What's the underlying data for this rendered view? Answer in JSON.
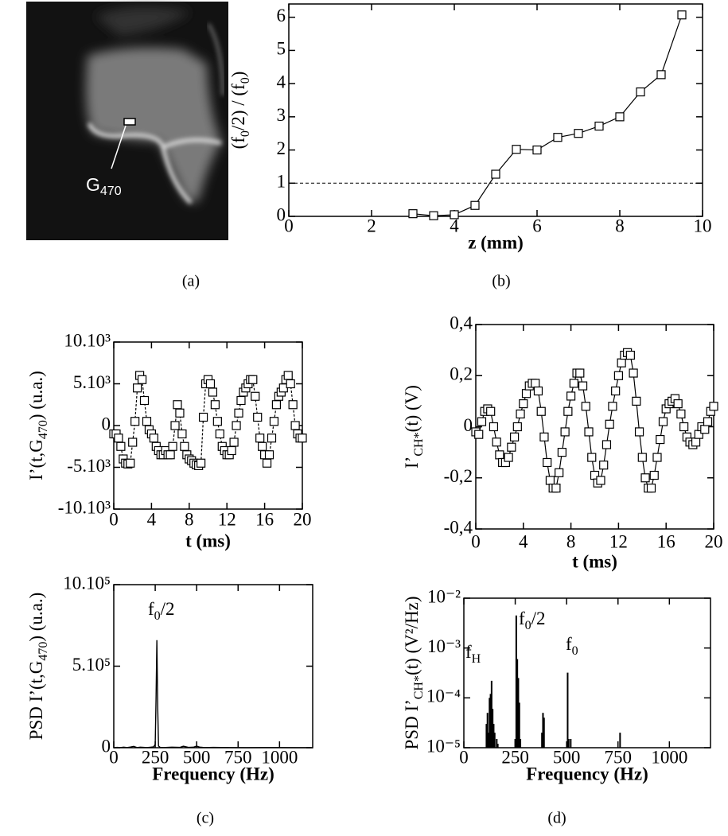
{
  "photo": {
    "label": [
      "G",
      "470"
    ],
    "scale": "1mm"
  },
  "captions": [
    "(a)",
    "(b)",
    "(c)",
    "(d)"
  ],
  "chart_data": [
    {
      "type": "line",
      "xlabel": "z (mm)",
      "ylabel": [
        "(f",
        "0",
        "/2) / (f",
        "0",
        ")"
      ],
      "xlim": [
        0,
        10
      ],
      "xticks": [
        0,
        2,
        4,
        6,
        8,
        10
      ],
      "ylim": [
        0,
        6.4
      ],
      "yticks": [
        0,
        1,
        2,
        3,
        4,
        5,
        6
      ],
      "hline": 1,
      "color": "#000000",
      "marker": "square",
      "series": [
        {
          "x": [
            3,
            3.5,
            4,
            4.5,
            5,
            5.5,
            6,
            6.5,
            7,
            7.5,
            8,
            8.5,
            9,
            9.5
          ],
          "values": [
            0.08,
            0.02,
            0.05,
            0.33,
            1.27,
            2.02,
            2.0,
            2.38,
            2.5,
            2.72,
            3.0,
            3.75,
            4.27,
            6.07
          ]
        }
      ]
    },
    {
      "type": "line",
      "xlabel": "t (ms)",
      "ylabel": [
        "I’(t,G",
        "470",
        ") (u.a.)"
      ],
      "xlim": [
        0,
        20
      ],
      "xticks": [
        0,
        4,
        8,
        12,
        16,
        20
      ],
      "ylim": [
        -10000,
        10000
      ],
      "yticks": [
        {
          "value": -10000,
          "label": "-10.10³"
        },
        {
          "value": -5000,
          "label": "-5.10³"
        },
        0,
        {
          "value": 5000,
          "label": "5.10³"
        },
        {
          "value": 10000,
          "label": "10.10³"
        }
      ],
      "color": "#000000",
      "marker": "square",
      "dashed": true,
      "series": [
        {
          "x": [
            0,
            0.25,
            0.5,
            0.75,
            1,
            1.25,
            1.5,
            1.75,
            2,
            2.25,
            2.5,
            2.75,
            3,
            3.25,
            3.5,
            3.75,
            4,
            4.25,
            4.5,
            4.75,
            5,
            5.25,
            5.5,
            5.75,
            6,
            6.25,
            6.5,
            6.75,
            7,
            7.25,
            7.5,
            7.75,
            8,
            8.25,
            8.5,
            8.75,
            9,
            9.25,
            9.5,
            9.75,
            10,
            10.25,
            10.5,
            10.75,
            11,
            11.25,
            11.5,
            11.75,
            12,
            12.25,
            12.5,
            12.75,
            13,
            13.25,
            13.5,
            13.75,
            14,
            14.25,
            14.5,
            14.75,
            15,
            15.25,
            15.5,
            15.75,
            16,
            16.25,
            16.5,
            16.75,
            17,
            17.25,
            17.5,
            17.75,
            18,
            18.25,
            18.5,
            18.75,
            19,
            19.25,
            19.5,
            19.75,
            20
          ],
          "values": [
            -1000,
            -1000,
            -1500,
            -2500,
            -4000,
            -4500,
            -4600,
            -4500,
            -2000,
            500,
            4500,
            6000,
            5500,
            3000,
            500,
            -500,
            -1000,
            -1500,
            -2500,
            -3000,
            -3500,
            -3500,
            -3000,
            -3500,
            -3500,
            -2500,
            0,
            2500,
            1500,
            -1000,
            -2500,
            -3500,
            -4000,
            -4200,
            -4500,
            -4700,
            -4800,
            -4500,
            1000,
            5000,
            5500,
            5000,
            4000,
            2500,
            500,
            -1000,
            -2500,
            -3000,
            -3500,
            -3500,
            -3000,
            -2000,
            0,
            1500,
            3000,
            4000,
            4500,
            5000,
            5500,
            5500,
            3500,
            1000,
            -1500,
            -2500,
            -3500,
            -4500,
            -3500,
            -1500,
            500,
            2500,
            3500,
            4000,
            4500,
            5500,
            6000,
            5000,
            2500,
            0,
            -1000,
            -1500,
            -1500
          ]
        }
      ]
    },
    {
      "type": "line",
      "xlabel": "t (ms)",
      "ylabel": [
        "I’",
        "CH*",
        "(t) (V)"
      ],
      "xlim": [
        0,
        20
      ],
      "xticks": [
        0,
        4,
        8,
        12,
        16,
        20
      ],
      "ylim": [
        -0.4,
        0.4
      ],
      "yticks": [
        {
          "value": -0.4,
          "label": "-0,4"
        },
        {
          "value": -0.2,
          "label": "-0,2"
        },
        0,
        {
          "value": 0.2,
          "label": "0,2"
        },
        {
          "value": 0.4,
          "label": "0,4"
        }
      ],
      "color": "#000000",
      "marker": "square",
      "series": [
        {
          "x": [
            0,
            0.25,
            0.5,
            0.75,
            1,
            1.25,
            1.5,
            1.75,
            2,
            2.25,
            2.5,
            2.75,
            3,
            3.25,
            3.5,
            3.75,
            4,
            4.25,
            4.5,
            4.75,
            5,
            5.25,
            5.5,
            5.75,
            6,
            6.25,
            6.5,
            6.75,
            7,
            7.25,
            7.5,
            7.75,
            8,
            8.25,
            8.5,
            8.75,
            9,
            9.25,
            9.5,
            9.75,
            10,
            10.25,
            10.5,
            10.75,
            11,
            11.25,
            11.5,
            11.75,
            12,
            12.25,
            12.5,
            12.75,
            13,
            13.25,
            13.5,
            13.75,
            14,
            14.25,
            14.5,
            14.75,
            15,
            15.25,
            15.5,
            15.75,
            16,
            16.25,
            16.5,
            16.75,
            17,
            17.25,
            17.5,
            17.75,
            18,
            18.25,
            18.5,
            18.75,
            19,
            19.25,
            19.5,
            19.75,
            20
          ],
          "values": [
            -0.02,
            -0.03,
            0.02,
            0.06,
            0.07,
            0.06,
            0.0,
            -0.06,
            -0.11,
            -0.14,
            -0.14,
            -0.12,
            -0.08,
            -0.04,
            0.0,
            0.05,
            0.09,
            0.13,
            0.16,
            0.17,
            0.17,
            0.14,
            0.06,
            -0.04,
            -0.14,
            -0.21,
            -0.24,
            -0.24,
            -0.18,
            -0.1,
            -0.02,
            0.06,
            0.12,
            0.17,
            0.21,
            0.21,
            0.16,
            0.08,
            -0.02,
            -0.12,
            -0.19,
            -0.22,
            -0.21,
            -0.15,
            -0.07,
            0.01,
            0.08,
            0.14,
            0.2,
            0.25,
            0.28,
            0.29,
            0.28,
            0.21,
            0.1,
            -0.02,
            -0.12,
            -0.2,
            -0.24,
            -0.24,
            -0.19,
            -0.12,
            -0.05,
            0.02,
            0.07,
            0.09,
            0.1,
            0.11,
            0.09,
            0.05,
            0.0,
            -0.04,
            -0.06,
            -0.07,
            -0.06,
            -0.03,
            0.0,
            -0.01,
            0.02,
            0.06,
            0.08
          ]
        }
      ]
    },
    {
      "type": "line",
      "xlabel": "Frequency (Hz)",
      "ylabel": [
        "PSD I’(t,G",
        "470",
        ") (u.a.)"
      ],
      "xlim": [
        0,
        1200
      ],
      "xticks": [
        0,
        250,
        500,
        750,
        1000
      ],
      "ylim": [
        0,
        1000000
      ],
      "yticks": [
        0,
        {
          "value": 500000,
          "label": "5.10⁵"
        },
        {
          "value": 1000000,
          "label": "10.10⁵"
        }
      ],
      "color": "#000000",
      "annotations": [
        [
          "f",
          "0",
          "/2"
        ]
      ],
      "series": [
        {
          "x": [
            0,
            20,
            40,
            60,
            80,
            100,
            120,
            140,
            160,
            180,
            200,
            220,
            240,
            250,
            255,
            260,
            265,
            270,
            280,
            300,
            350,
            400,
            420,
            450,
            480,
            500,
            520,
            550,
            600,
            700,
            800,
            900,
            1000,
            1100,
            1190
          ],
          "values": [
            0,
            2000,
            1000,
            3000,
            1000,
            4000,
            8000,
            1000,
            3000,
            2000,
            1000,
            3000,
            5000,
            20000,
            300000,
            660000,
            250000,
            10000,
            2000,
            1000,
            3000,
            2000,
            9000,
            2000,
            3000,
            10000,
            3000,
            1000,
            2000,
            1000,
            500,
            1000,
            1000,
            500,
            500
          ]
        }
      ]
    },
    {
      "type": "bar",
      "xlabel": "Frequency (Hz)",
      "ylabel": [
        "PSD I’",
        "CH*",
        "(t) (V²/Hz)"
      ],
      "log_y": true,
      "xlim": [
        0,
        1200
      ],
      "xticks": [
        0,
        250,
        500,
        750,
        1000
      ],
      "ylim": [
        1e-05,
        0.01
      ],
      "yticks": [
        {
          "value": 1e-05,
          "label": "10⁻⁵"
        },
        {
          "value": 0.0001,
          "label": "10⁻⁴"
        },
        {
          "value": 0.001,
          "label": "10⁻³"
        },
        {
          "value": 0.01,
          "label": "10⁻²"
        }
      ],
      "color": "#000000",
      "annotations": [
        [
          "f",
          "H"
        ],
        [
          "f",
          "0",
          "/2"
        ],
        [
          "f",
          "0"
        ]
      ],
      "series": [
        {
          "x": [
            110,
            115,
            120,
            125,
            130,
            135,
            140,
            145,
            150,
            160,
            165,
            250,
            255,
            260,
            265,
            270,
            275,
            380,
            385,
            390,
            505,
            510,
            520,
            760
          ],
          "values": [
            3e-05,
            5e-05,
            2e-05,
            0.0001,
            0.00012,
            0.00022,
            6e-05,
            3e-05,
            2e-05,
            1.5e-05,
            1.2e-05,
            1.5e-05,
            0.0045,
            0.0006,
            0.00025,
            8e-05,
            1.5e-05,
            2e-05,
            5e-05,
            4e-05,
            0.00032,
            1.5e-05,
            1.5e-05,
            2e-05
          ]
        }
      ]
    }
  ]
}
